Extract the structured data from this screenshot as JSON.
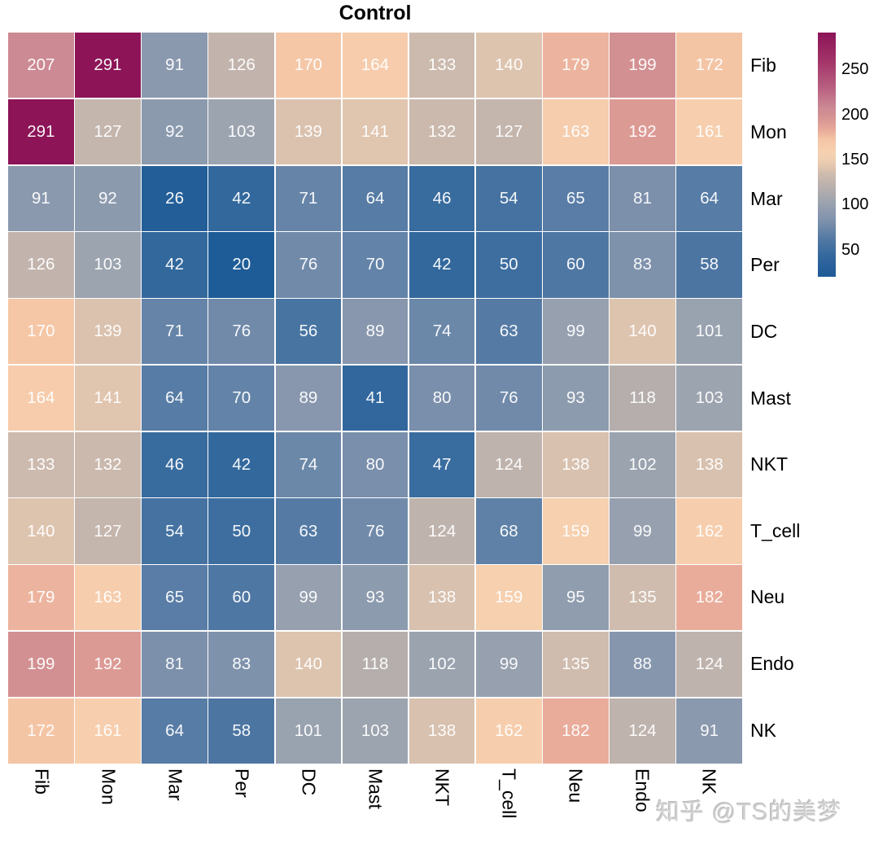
{
  "title": "Control",
  "watermark": "知乎 @TS的美梦",
  "colors": {
    "background": "#ffffff",
    "gridline": "#ffffff",
    "cell_text": "#ffffff",
    "axis_label": "#000000",
    "title_text": "#000000",
    "watermark_text": "#cfcfcf"
  },
  "chart_data": {
    "type": "heatmap",
    "title": "Control",
    "rows": [
      "Fib",
      "Mon",
      "Mar",
      "Per",
      "DC",
      "Mast",
      "NKT",
      "T_cell",
      "Neu",
      "Endo",
      "NK"
    ],
    "cols": [
      "Fib",
      "Mon",
      "Mar",
      "Per",
      "DC",
      "Mast",
      "NKT",
      "T_cell",
      "Neu",
      "Endo",
      "NK"
    ],
    "values": [
      [
        207,
        291,
        91,
        126,
        170,
        164,
        133,
        140,
        179,
        199,
        172
      ],
      [
        291,
        127,
        92,
        103,
        139,
        141,
        132,
        127,
        163,
        192,
        161
      ],
      [
        91,
        92,
        26,
        42,
        71,
        64,
        46,
        54,
        65,
        81,
        64
      ],
      [
        126,
        103,
        42,
        20,
        76,
        70,
        42,
        50,
        60,
        83,
        58
      ],
      [
        170,
        139,
        71,
        76,
        56,
        89,
        74,
        63,
        99,
        140,
        101
      ],
      [
        164,
        141,
        64,
        70,
        89,
        41,
        80,
        76,
        93,
        118,
        103
      ],
      [
        133,
        132,
        46,
        42,
        74,
        80,
        47,
        124,
        138,
        102,
        138
      ],
      [
        140,
        127,
        54,
        50,
        63,
        76,
        124,
        68,
        159,
        99,
        162
      ],
      [
        179,
        163,
        65,
        60,
        99,
        93,
        138,
        159,
        95,
        135,
        182
      ],
      [
        199,
        192,
        81,
        83,
        140,
        118,
        102,
        99,
        135,
        88,
        124
      ],
      [
        172,
        161,
        64,
        58,
        101,
        103,
        138,
        162,
        182,
        124,
        91
      ]
    ],
    "legend": {
      "position": "right",
      "ticks": [
        250,
        200,
        150,
        100,
        50
      ],
      "domain": [
        20,
        291
      ]
    },
    "color_scale_stops": [
      [
        20,
        "#1E5C97"
      ],
      [
        30,
        "#265F9A"
      ],
      [
        45,
        "#366A9E"
      ],
      [
        60,
        "#4F77A3"
      ],
      [
        70,
        "#6383A8"
      ],
      [
        80,
        "#7A8FAB"
      ],
      [
        92,
        "#8C9AAE"
      ],
      [
        103,
        "#9CA4AF"
      ],
      [
        118,
        "#B5AEAD"
      ],
      [
        127,
        "#C4B5AD"
      ],
      [
        135,
        "#CFBCAE"
      ],
      [
        141,
        "#E0C5AF"
      ],
      [
        150,
        "#EFCFB1"
      ],
      [
        160,
        "#F7D0AF"
      ],
      [
        172,
        "#F4C5A5"
      ],
      [
        182,
        "#E9AC9B"
      ],
      [
        192,
        "#DC9A95"
      ],
      [
        199,
        "#D39092"
      ],
      [
        207,
        "#CC8A94"
      ],
      [
        230,
        "#B85F80"
      ],
      [
        260,
        "#A23368"
      ],
      [
        291,
        "#8C1457"
      ]
    ]
  }
}
